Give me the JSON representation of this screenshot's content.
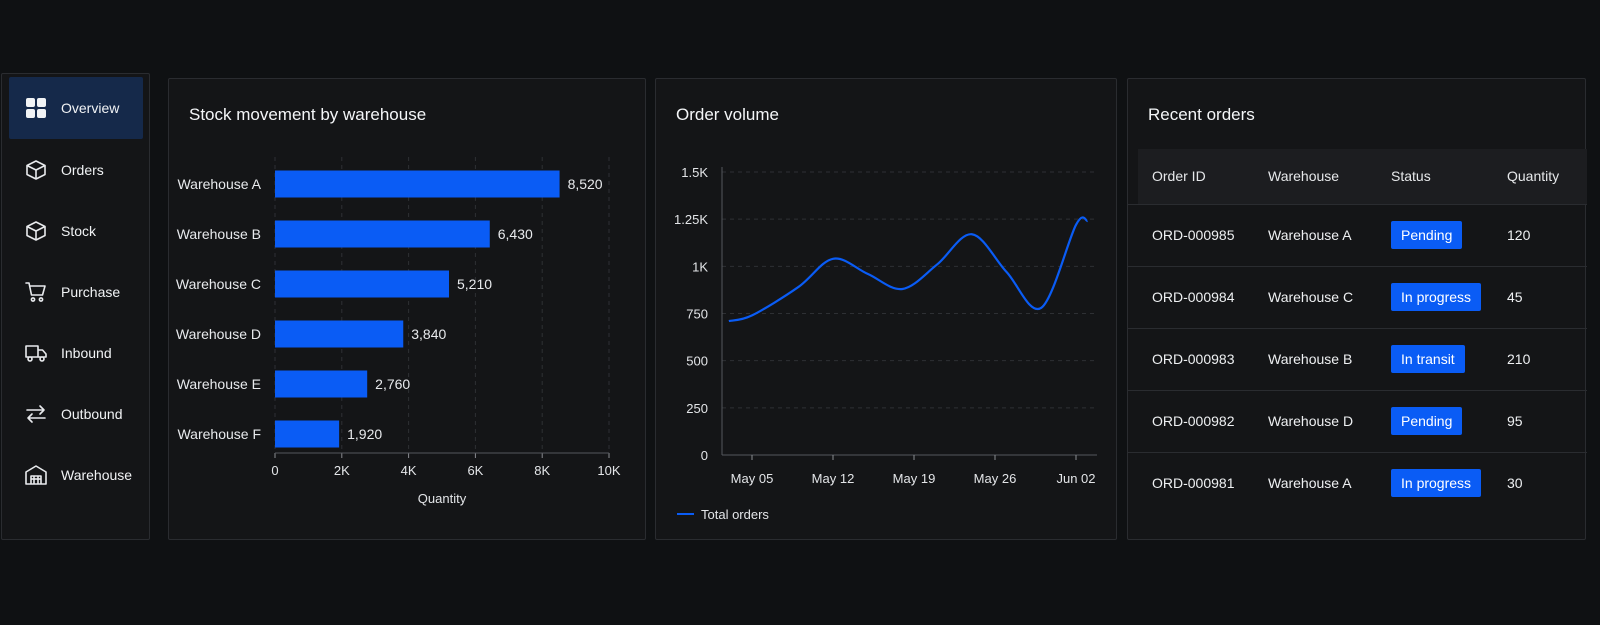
{
  "sidebar": {
    "items": [
      {
        "label": "Overview",
        "icon": "grid-icon",
        "active": true
      },
      {
        "label": "Orders",
        "icon": "box-icon"
      },
      {
        "label": "Stock",
        "icon": "box-icon"
      },
      {
        "label": "Purchase",
        "icon": "cart-icon"
      },
      {
        "label": "Inbound",
        "icon": "truck-icon"
      },
      {
        "label": "Outbound",
        "icon": "arrows-swap-icon"
      },
      {
        "label": "Warehouse",
        "icon": "warehouse-icon"
      }
    ]
  },
  "colors": {
    "accent": "#0a5cf5",
    "background": "#0f1113",
    "panel": "#141517"
  },
  "stock_chart": {
    "title": "Stock movement by warehouse",
    "chart_data": {
      "type": "bar",
      "orientation": "horizontal",
      "categories": [
        "Warehouse A",
        "Warehouse B",
        "Warehouse C",
        "Warehouse D",
        "Warehouse E",
        "Warehouse F"
      ],
      "values": [
        8520,
        6430,
        5210,
        3840,
        2760,
        1920
      ],
      "value_labels": [
        "8,520",
        "6,430",
        "5,210",
        "3,840",
        "2,760",
        "1,920"
      ],
      "xlabel": "Quantity",
      "xlim": [
        0,
        10000
      ],
      "xticks": [
        0,
        2000,
        4000,
        6000,
        8000,
        10000
      ],
      "xtick_labels": [
        "0",
        "2K",
        "4K",
        "6K",
        "8K",
        "10K"
      ],
      "grid": true
    }
  },
  "order_chart": {
    "title": "Order volume",
    "chart_data": {
      "type": "line",
      "x": [
        "May 03",
        "May 05",
        "May 09",
        "May 12",
        "May 15",
        "May 18",
        "May 21",
        "May 24",
        "May 27",
        "May 30",
        "Jun 02",
        "Jun 03"
      ],
      "series": [
        {
          "name": "Total orders",
          "values": [
            710,
            740,
            890,
            1040,
            960,
            880,
            1010,
            1170,
            970,
            780,
            1220,
            1240
          ]
        }
      ],
      "xtick_labels": [
        "May 05",
        "May 12",
        "May 19",
        "May 26",
        "Jun 02"
      ],
      "ylim": [
        0,
        1500
      ],
      "yticks": [
        0,
        250,
        500,
        750,
        1000,
        1250,
        1500
      ],
      "ytick_labels": [
        "0",
        "250",
        "500",
        "750",
        "1K",
        "1.25K",
        "1.5K"
      ],
      "grid": true,
      "legend": "bottom-left"
    }
  },
  "recent_orders": {
    "title": "Recent orders",
    "columns": [
      "Order ID",
      "Warehouse",
      "Status",
      "Quantity"
    ],
    "rows": [
      {
        "id": "ORD-000985",
        "warehouse": "Warehouse A",
        "status": "Pending",
        "qty": "120"
      },
      {
        "id": "ORD-000984",
        "warehouse": "Warehouse C",
        "status": "In progress",
        "qty": "45"
      },
      {
        "id": "ORD-000983",
        "warehouse": "Warehouse B",
        "status": "In transit",
        "qty": "210"
      },
      {
        "id": "ORD-000982",
        "warehouse": "Warehouse D",
        "status": "Pending",
        "qty": "95"
      },
      {
        "id": "ORD-000981",
        "warehouse": "Warehouse A",
        "status": "In progress",
        "qty": "30"
      }
    ]
  }
}
